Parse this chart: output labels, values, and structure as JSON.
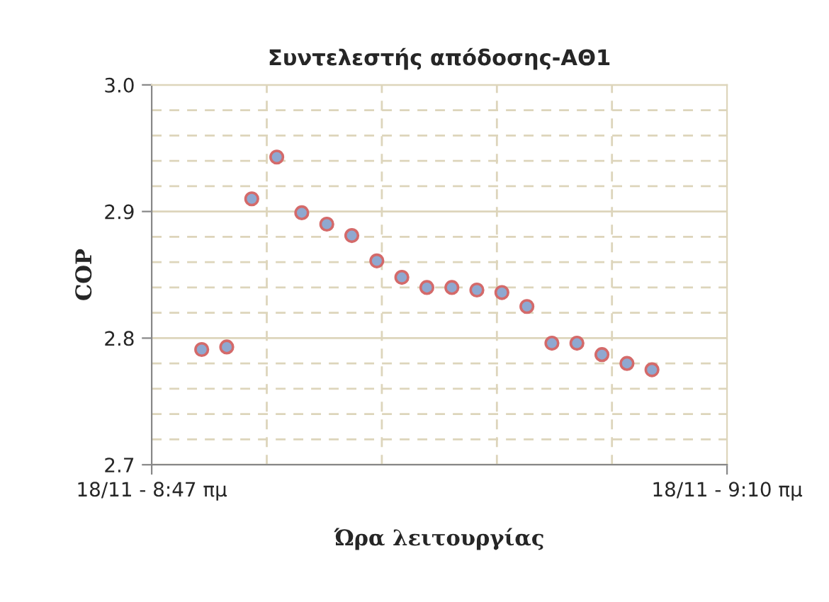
{
  "chart_data": {
    "type": "scatter",
    "title": "Συντελεστής απόδοσης-ΑΘ1",
    "xlabel": "Ώρα λειτουργίας",
    "ylabel": "COP",
    "categories": [
      "18/11 - 8:47 πμ",
      null,
      null,
      null,
      null,
      null,
      null,
      null,
      null,
      null,
      null,
      null,
      null,
      null,
      null,
      null,
      null,
      null,
      null,
      null,
      null,
      null,
      null,
      "18/11 - 9:10 πμ"
    ],
    "series": [
      {
        "color": "#8fa8d0",
        "values": [
          null,
          null,
          2.791,
          2.793,
          2.91,
          2.943,
          2.899,
          2.89,
          2.881,
          2.861,
          2.848,
          2.84,
          2.84,
          2.838,
          2.836,
          2.825,
          2.796,
          2.796,
          2.787,
          2.78,
          2.775,
          null,
          null,
          null
        ]
      }
    ],
    "marker": "circle",
    "grid": true,
    "ylim": [
      2.7,
      3.0
    ],
    "yticks": [
      2.7,
      {
        "value": 2.72,
        "label": null
      },
      {
        "value": 2.74,
        "label": null
      },
      {
        "value": 2.76,
        "label": null
      },
      {
        "value": 2.78,
        "label": null
      },
      2.8,
      {
        "value": 2.82,
        "label": null
      },
      {
        "value": 2.84,
        "label": null
      },
      {
        "value": 2.86,
        "label": null
      },
      {
        "value": 2.88,
        "label": null
      },
      2.9,
      {
        "value": 2.92,
        "label": null
      },
      {
        "value": 2.94,
        "label": null
      },
      {
        "value": 2.96,
        "label": null
      },
      {
        "value": 2.98,
        "label": null
      },
      {
        "value": 3.0,
        "label": "3.0"
      }
    ]
  }
}
